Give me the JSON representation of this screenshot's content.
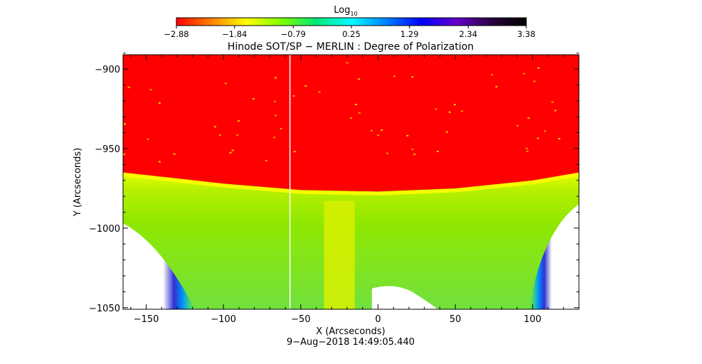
{
  "chart_data": {
    "type": "heatmap",
    "title": "Hinode SOT/SP − MERLIN : Degree of Polarization",
    "xlabel": "X (Arcseconds)",
    "ylabel": "Y (Arcseconds)",
    "xlim": [
      -165,
      130
    ],
    "ylim": [
      -1051,
      -891
    ],
    "x_ticks": [
      -150,
      -100,
      -50,
      0,
      50,
      100
    ],
    "x_tick_labels": [
      "−150",
      "−100",
      "−50",
      "0",
      "50",
      "100"
    ],
    "y_ticks": [
      -900,
      -950,
      -1000,
      -1050
    ],
    "y_tick_labels": [
      "−900",
      "−950",
      "−1000",
      "−1050"
    ],
    "colorbar": {
      "label_main": "Log",
      "label_sub": "10",
      "range": [
        -2.88,
        3.38
      ],
      "tick_values": [
        -2.88,
        -1.84,
        -0.79,
        0.25,
        1.29,
        2.34,
        3.38
      ],
      "tick_labels": [
        "−2.88",
        "−1.84",
        "−0.79",
        "0.25",
        "1.29",
        "2.34",
        "3.38"
      ],
      "colors": [
        "#ff0000",
        "#ff8000",
        "#ffff00",
        "#80ff00",
        "#00e87a",
        "#00ffff",
        "#0080ff",
        "#0000ff",
        "#6600cc",
        "#2a0040",
        "#000000"
      ]
    },
    "limb_y_at_x": [
      {
        "x": -165,
        "y": -965
      },
      {
        "x": -100,
        "y": -972
      },
      {
        "x": -50,
        "y": -976
      },
      {
        "x": 0,
        "y": -977
      },
      {
        "x": 50,
        "y": -975
      },
      {
        "x": 100,
        "y": -970
      },
      {
        "x": 130,
        "y": -965
      }
    ],
    "vertical_line_x": -57,
    "timestamp": "9−Aug−2018 14:49:05.440"
  }
}
